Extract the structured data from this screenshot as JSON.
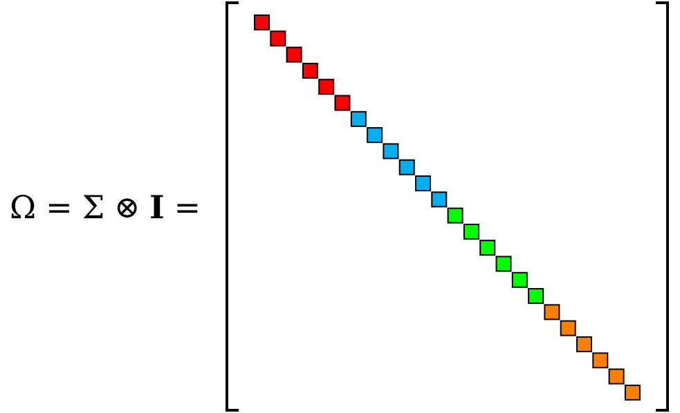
{
  "equation": {
    "omega": "Ω",
    "equals1": "=",
    "sigma": "Σ",
    "otimes": "⊗",
    "identity": "I",
    "equals2": "="
  },
  "matrix": {
    "blocks": [
      {
        "color": "#ff0000",
        "count": 6
      },
      {
        "color": "#00b0f0",
        "count": 6
      },
      {
        "color": "#00ff00",
        "count": 6
      },
      {
        "color": "#ff8000",
        "count": 6
      }
    ],
    "cell_border": "#000000",
    "bracket_color": "#000000"
  }
}
